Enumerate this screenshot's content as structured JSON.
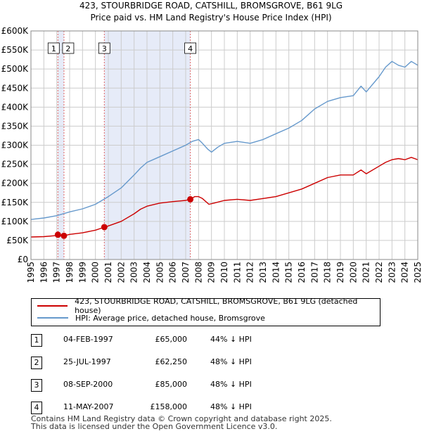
{
  "chart_data": {
    "type": "line",
    "title": "423, STOURBRIDGE ROAD, CATSHILL, BROMSGROVE, B61 9LG",
    "subtitle": "Price paid vs. HM Land Registry's House Price Index (HPI)",
    "xlabel": "",
    "ylabel": "",
    "xlim": [
      1995,
      2025
    ],
    "ylim": [
      0,
      600000
    ],
    "x_ticks": [
      "1995",
      "1996",
      "1997",
      "1998",
      "1999",
      "2000",
      "2001",
      "2002",
      "2003",
      "2004",
      "2005",
      "2006",
      "2007",
      "2008",
      "2009",
      "2010",
      "2011",
      "2012",
      "2013",
      "2014",
      "2015",
      "2016",
      "2017",
      "2018",
      "2019",
      "2020",
      "2021",
      "2022",
      "2023",
      "2024",
      "2025"
    ],
    "y_ticks": [
      {
        "value": 0,
        "label": "£0"
      },
      {
        "value": 50000,
        "label": "£50K"
      },
      {
        "value": 100000,
        "label": "£100K"
      },
      {
        "value": 150000,
        "label": "£150K"
      },
      {
        "value": 200000,
        "label": "£200K"
      },
      {
        "value": 250000,
        "label": "£250K"
      },
      {
        "value": 300000,
        "label": "£300K"
      },
      {
        "value": 350000,
        "label": "£350K"
      },
      {
        "value": 400000,
        "label": "£400K"
      },
      {
        "value": 450000,
        "label": "£450K"
      },
      {
        "value": 500000,
        "label": "£500K"
      },
      {
        "value": 550000,
        "label": "£550K"
      },
      {
        "value": 600000,
        "label": "£600K"
      }
    ],
    "grid": true,
    "series": [
      {
        "name": "423, STOURBRIDGE ROAD, CATSHILL, BROMSGROVE, B61 9LG (detached house)",
        "color": "#cc0000",
        "x": [
          1995.0,
          1996.0,
          1997.0,
          1997.5,
          1998.0,
          1999.0,
          2000.0,
          2000.7,
          2001.0,
          2002.0,
          2003.0,
          2003.5,
          2004.0,
          2005.0,
          2006.0,
          2007.0,
          2007.36,
          2007.7,
          2008.0,
          2008.3,
          2008.8,
          2009.2,
          2010.0,
          2011.0,
          2012.0,
          2013.0,
          2014.0,
          2015.0,
          2016.0,
          2017.0,
          2018.0,
          2019.0,
          2020.0,
          2020.6,
          2021.0,
          2022.0,
          2022.5,
          2023.0,
          2023.5,
          2024.0,
          2024.5,
          2025.0
        ],
        "values": [
          59000,
          60000,
          63000,
          62000,
          66000,
          70000,
          77000,
          85000,
          88000,
          100000,
          120000,
          132000,
          140000,
          148000,
          152000,
          155000,
          158000,
          165000,
          165000,
          160000,
          145000,
          148000,
          155000,
          158000,
          155000,
          160000,
          165000,
          175000,
          185000,
          200000,
          215000,
          222000,
          222000,
          235000,
          225000,
          245000,
          255000,
          262000,
          265000,
          262000,
          268000,
          262000
        ]
      },
      {
        "name": "HPI: Average price, detached house, Bromsgrove",
        "color": "#6699cc",
        "x": [
          1995.0,
          1996.0,
          1997.0,
          1998.0,
          1999.0,
          2000.0,
          2001.0,
          2002.0,
          2003.0,
          2003.5,
          2004.0,
          2005.0,
          2006.0,
          2007.0,
          2007.5,
          2008.0,
          2008.3,
          2008.7,
          2009.0,
          2009.5,
          2010.0,
          2011.0,
          2012.0,
          2013.0,
          2014.0,
          2015.0,
          2016.0,
          2017.0,
          2018.0,
          2019.0,
          2020.0,
          2020.6,
          2021.0,
          2022.0,
          2022.5,
          2023.0,
          2023.5,
          2024.0,
          2024.5,
          2025.0
        ],
        "values": [
          105000,
          109000,
          115000,
          125000,
          133000,
          145000,
          165000,
          188000,
          222000,
          240000,
          255000,
          270000,
          285000,
          300000,
          310000,
          315000,
          305000,
          290000,
          282000,
          295000,
          305000,
          310000,
          305000,
          315000,
          330000,
          345000,
          365000,
          395000,
          415000,
          425000,
          430000,
          455000,
          440000,
          480000,
          505000,
          520000,
          510000,
          505000,
          520000,
          510000
        ]
      }
    ],
    "sales": [
      {
        "id": "1",
        "x": 1997.09,
        "value": 65000
      },
      {
        "id": "2",
        "x": 1997.56,
        "value": 62250
      },
      {
        "id": "3",
        "x": 2000.69,
        "value": 85000
      },
      {
        "id": "4",
        "x": 2007.36,
        "value": 158000
      }
    ],
    "shaded_ranges": [
      [
        1997.09,
        1997.56
      ],
      [
        2000.69,
        2007.36
      ]
    ]
  },
  "legend": {
    "property_label": "423, STOURBRIDGE ROAD, CATSHILL, BROMSGROVE, B61 9LG (detached house)",
    "hpi_label": "HPI: Average price, detached house, Bromsgrove"
  },
  "sales_table": [
    {
      "num": "1",
      "date": "04-FEB-1997",
      "price": "£65,000",
      "diff": "44% ↓ HPI"
    },
    {
      "num": "2",
      "date": "25-JUL-1997",
      "price": "£62,250",
      "diff": "48% ↓ HPI"
    },
    {
      "num": "3",
      "date": "08-SEP-2000",
      "price": "£85,000",
      "diff": "48% ↓ HPI"
    },
    {
      "num": "4",
      "date": "11-MAY-2007",
      "price": "£158,000",
      "diff": "48% ↓ HPI"
    }
  ],
  "footer": {
    "line1": "Contains HM Land Registry data © Crown copyright and database right 2025.",
    "line2": "This data is licensed under the Open Government Licence v3.0."
  }
}
